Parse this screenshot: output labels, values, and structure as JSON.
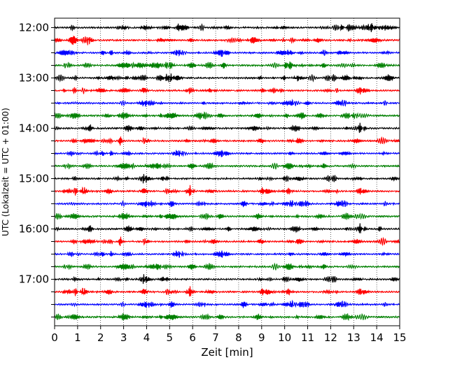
{
  "chart_data": {
    "type": "line",
    "title": "",
    "xlabel": "Zeit  [min]",
    "ylabel": "UTC (Lokalzeit = UTC + 01:00)",
    "xlim": [
      0,
      15
    ],
    "xticks": [
      "0",
      "1",
      "2",
      "3",
      "4",
      "5",
      "6",
      "7",
      "8",
      "9",
      "10",
      "11",
      "12",
      "13",
      "14",
      "15"
    ],
    "yticks": [
      "12:00",
      "13:00",
      "14:00",
      "15:00",
      "16:00",
      "17:00"
    ],
    "grid": "vertical dotted lines at each minute",
    "trace_start": "12:00",
    "trace_interval_min": 15,
    "trace_colors_cycle": [
      "#000000",
      "#ff0000",
      "#0000ff",
      "#008000"
    ],
    "trace_count": 24,
    "traces": [
      "12:00",
      "12:15",
      "12:30",
      "12:45",
      "13:00",
      "13:15",
      "13:30",
      "13:45",
      "14:00",
      "14:15",
      "14:30",
      "14:45",
      "15:00",
      "15:15",
      "15:30",
      "15:45",
      "16:00",
      "16:15",
      "16:30",
      "16:45",
      "17:00",
      "17:15",
      "17:30",
      "17:45"
    ]
  }
}
